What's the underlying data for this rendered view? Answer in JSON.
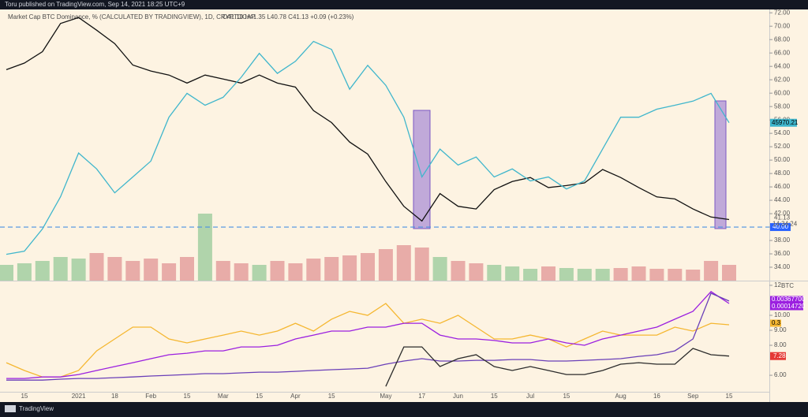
{
  "header": {
    "text": "Toru published on TradingView.com, Sep 14, 2021 18:25 UTC+9"
  },
  "footer": {
    "brand": "TradingView"
  },
  "chart_data": [
    {
      "type": "line",
      "title": "Market Cap BTC Dominance, % (CALCULATED BY TRADINGVIEW), 1D, CRYPTOCAP",
      "subtitle": "O41.10 H41.35 L40.78 C41.13 +0.09 (+0.23%)",
      "categories": [
        null,
        "15",
        null,
        null,
        "2021",
        null,
        "18",
        null,
        "Feb",
        null,
        "15",
        null,
        "Mar",
        null,
        "15",
        null,
        "Apr",
        null,
        "15",
        null,
        null,
        "May",
        null,
        "17",
        null,
        "Jun",
        null,
        "15",
        null,
        "Jul",
        null,
        "15",
        null,
        null,
        "Aug",
        null,
        "16",
        null,
        "Sep",
        null,
        "15"
      ],
      "ylim": [
        32,
        72.5
      ],
      "yticks": [
        {
          "value": 34,
          "label": "34.00"
        },
        {
          "value": 36,
          "label": "36.00"
        },
        {
          "value": 38,
          "label": "38.00"
        },
        {
          "value": 40,
          "label": "40.00"
        },
        {
          "value": 42,
          "label": "42.00"
        },
        {
          "value": 44,
          "label": "44.00"
        },
        {
          "value": 46,
          "label": "46.00"
        },
        {
          "value": 48,
          "label": "48.00"
        },
        {
          "value": 50,
          "label": "50.00"
        },
        {
          "value": 52,
          "label": "52.00"
        },
        {
          "value": 54,
          "label": "54.00"
        },
        {
          "value": 56,
          "label": "56.00"
        },
        {
          "value": 58,
          "label": "58.00"
        },
        {
          "value": 60,
          "label": "60.00"
        },
        {
          "value": 62,
          "label": "62.00"
        },
        {
          "value": 64,
          "label": "64.00"
        },
        {
          "value": 66,
          "label": "66.00"
        },
        {
          "value": 68,
          "label": "68.00"
        },
        {
          "value": 70,
          "label": "70.00"
        },
        {
          "value": 72,
          "label": "72.00"
        }
      ],
      "y2lim": [
        13600,
        69200
      ],
      "series": [
        {
          "name": "BTC Dominance",
          "color": "#111111",
          "values": [
            63.5,
            64.5,
            66.2,
            70.4,
            71.3,
            69.4,
            67.4,
            64.2,
            63.3,
            62.7,
            61.5,
            62.7,
            62.1,
            61.5,
            62.7,
            61.5,
            60.9,
            57.4,
            55.6,
            52.7,
            50.9,
            46.8,
            43.1,
            40.9,
            45,
            43.1,
            42.7,
            45.6,
            46.8,
            47.4,
            45.9,
            46.2,
            46.6,
            48.6,
            47.4,
            45.9,
            44.5,
            44.2,
            42.7,
            41.5,
            41.13
          ]
        },
        {
          "name": "BTCUSD",
          "color": "#3fb6cc",
          "axis": "y2",
          "values": [
            19000,
            19650,
            24200,
            30800,
            39760,
            36500,
            31600,
            34850,
            38120,
            47100,
            52000,
            49570,
            51200,
            55300,
            60200,
            56100,
            58560,
            62650,
            61000,
            52840,
            57740,
            53650,
            47100,
            34850,
            40570,
            37300,
            38940,
            34850,
            36500,
            34040,
            34850,
            32400,
            34040,
            40570,
            47100,
            47100,
            48750,
            49570,
            50400,
            52000,
            45970.21
          ]
        }
      ],
      "volume": {
        "ylim": [
          0,
          100
        ],
        "values": [
          20,
          22,
          25,
          30,
          28,
          35,
          30,
          25,
          28,
          22,
          30,
          85,
          25,
          22,
          20,
          25,
          22,
          28,
          30,
          32,
          35,
          40,
          45,
          42,
          30,
          25,
          22,
          20,
          18,
          15,
          18,
          16,
          15,
          15,
          16,
          18,
          15,
          15,
          14,
          25,
          20
        ]
      },
      "hline": {
        "value": 40,
        "label": "40.00"
      },
      "countdown": "14:34:24"
    },
    {
      "type": "line",
      "ylim": [
        4.9,
        12.26
      ],
      "yticks": [
        {
          "value": 6,
          "label": "6.00"
        },
        {
          "value": 8,
          "label": "8.00"
        },
        {
          "value": 9,
          "label": "9.00"
        },
        {
          "value": 10,
          "label": "10.00"
        },
        {
          "value": 12,
          "label": "12."
        }
      ],
      "axis_label": "BTC",
      "series": [
        {
          "name": "orange",
          "color": "#f5b731",
          "values": [
            6.84,
            6.32,
            5.89,
            5.89,
            6.32,
            7.63,
            8.42,
            9.21,
            9.21,
            8.42,
            8.16,
            8.42,
            8.68,
            8.95,
            8.68,
            8.95,
            9.47,
            8.95,
            9.74,
            10.26,
            10,
            10.79,
            9.47,
            9.74,
            9.47,
            10,
            9.21,
            8.42,
            8.42,
            8.68,
            8.42,
            7.89,
            8.42,
            8.95,
            8.68,
            8.68,
            8.68,
            9.21,
            8.95,
            9.47,
            9.37
          ]
        },
        {
          "name": "purple",
          "color": "#9b1fe0",
          "values": [
            5.79,
            5.79,
            5.89,
            5.89,
            6.05,
            6.32,
            6.58,
            6.84,
            7.11,
            7.37,
            7.47,
            7.63,
            7.63,
            7.89,
            7.89,
            8,
            8.42,
            8.68,
            8.95,
            8.95,
            9.21,
            9.21,
            9.47,
            9.47,
            8.68,
            8.42,
            8.42,
            8.32,
            8.16,
            8.16,
            8.42,
            8.16,
            8,
            8.42,
            8.68,
            8.95,
            9.21,
            9.74,
            10.26,
            11.58,
            10.79
          ]
        },
        {
          "name": "violet",
          "color": "#6a3fb8",
          "values": [
            5.68,
            5.68,
            5.68,
            5.74,
            5.79,
            5.79,
            5.84,
            5.89,
            5.95,
            6,
            6.05,
            6.11,
            6.11,
            6.16,
            6.21,
            6.21,
            6.26,
            6.32,
            6.37,
            6.42,
            6.47,
            6.74,
            6.95,
            7.11,
            6.95,
            6.95,
            7,
            7,
            7.05,
            7.05,
            6.95,
            6.95,
            7,
            7.05,
            7.11,
            7.26,
            7.37,
            7.63,
            8.42,
            11.47,
            10.95
          ]
        },
        {
          "name": "ratio",
          "color": "#2b2b2b",
          "values": [
            null,
            null,
            null,
            null,
            null,
            null,
            null,
            null,
            null,
            null,
            null,
            null,
            null,
            null,
            null,
            null,
            null,
            null,
            null,
            null,
            null,
            5.26,
            7.89,
            7.89,
            6.58,
            7.11,
            7.37,
            6.58,
            6.32,
            6.58,
            6.32,
            6.05,
            6.05,
            6.32,
            6.74,
            6.84,
            6.74,
            6.74,
            7.79,
            7.37,
            7.28
          ]
        }
      ],
      "price_labels": [
        {
          "text": "0.00367700",
          "color": "#9b1fe0"
        },
        {
          "text": "0.00014720",
          "color": "#9b1fe0"
        },
        {
          "text": "0.3",
          "color": "#f5b731"
        }
      ]
    }
  ]
}
